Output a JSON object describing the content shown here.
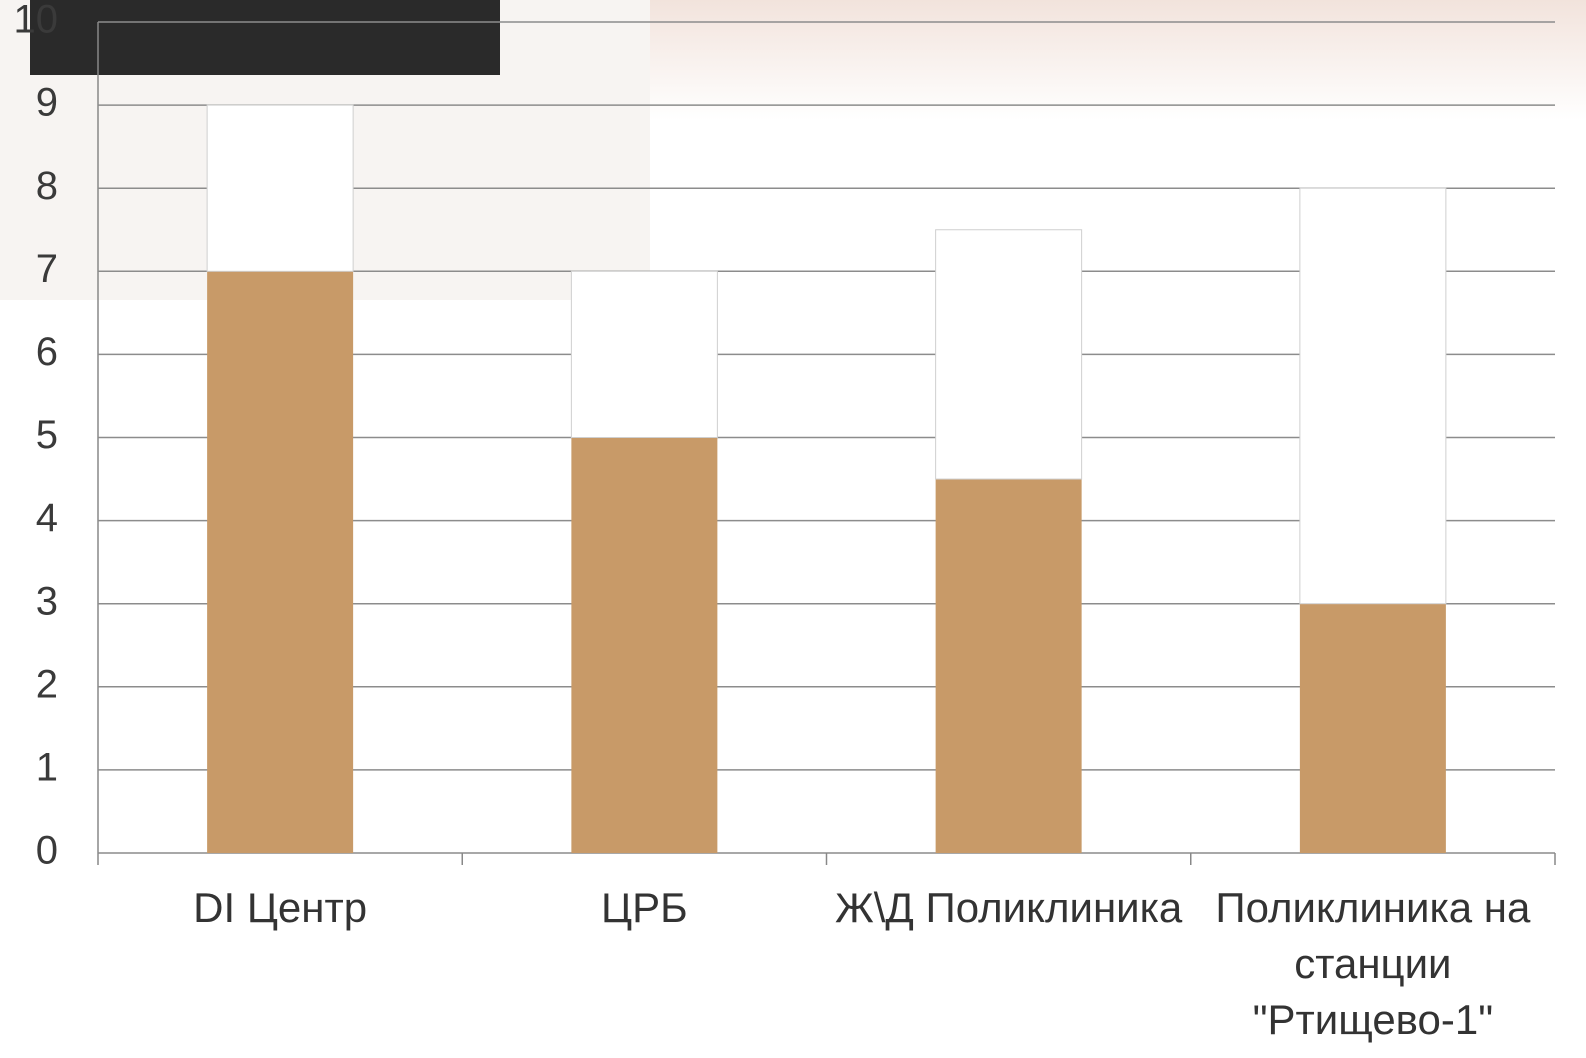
{
  "chart_data": {
    "type": "bar",
    "stacked": true,
    "categories": [
      "DI Центр",
      "ЦРБ",
      "Ж\\Д Поликлиника",
      "Поликлиника на станции \"Ртищево-1\""
    ],
    "series": [
      {
        "color": "#c89a68",
        "values": [
          7,
          5,
          4.5,
          3
        ]
      },
      {
        "color": "#ffffff",
        "values": [
          2,
          2,
          3,
          5
        ]
      }
    ],
    "ylim": [
      0,
      10
    ],
    "yticks": [
      0,
      1,
      2,
      3,
      4,
      5,
      6,
      7,
      8,
      9,
      10
    ],
    "grid": true
  }
}
